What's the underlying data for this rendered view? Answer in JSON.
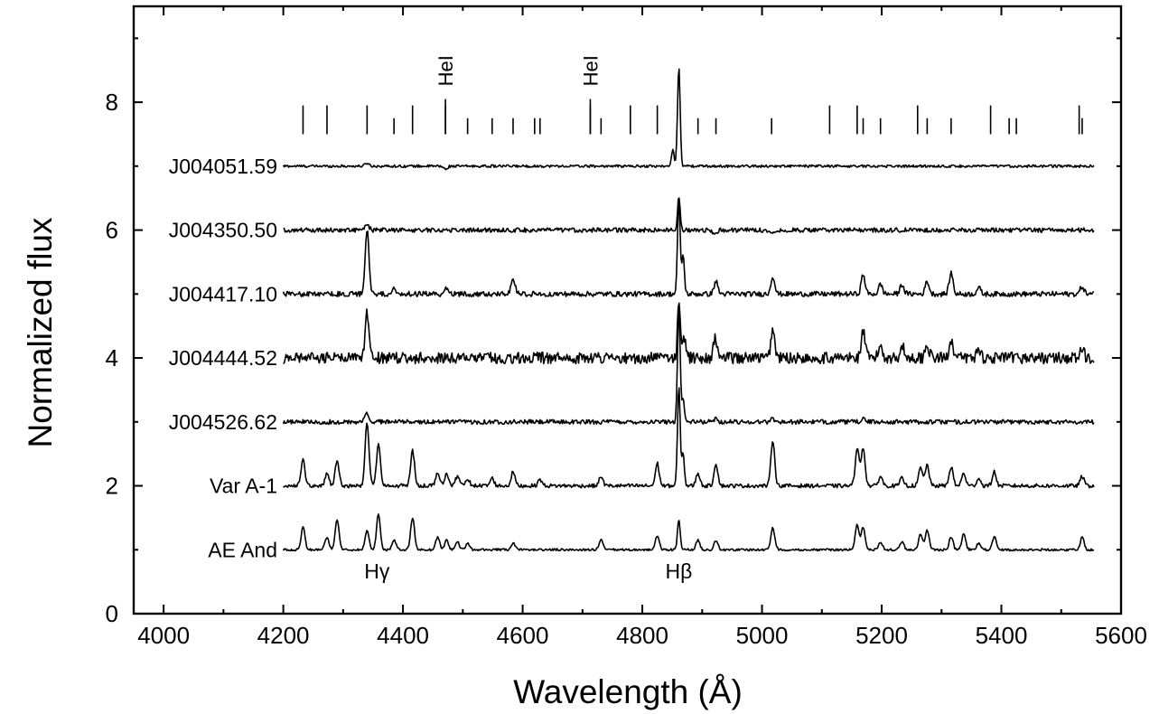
{
  "chart_data": {
    "type": "line",
    "xlabel": "Wavelength (Å)",
    "ylabel": "Normalized flux",
    "xlim": [
      3950,
      5600
    ],
    "ylim": [
      0,
      9.5
    ],
    "x_ticks": [
      "4000",
      "4200",
      "4400",
      "4600",
      "4800",
      "5000",
      "5200",
      "5400",
      "5600"
    ],
    "y_ticks": [
      "0",
      "2",
      "4",
      "6",
      "8"
    ],
    "x_range": [
      4200,
      5555
    ],
    "series": [
      {
        "name": "J004051.59",
        "offset": 7.0,
        "noise": 0.02,
        "lines": [
          [
            4340,
            0.05
          ],
          [
            4471,
            -0.05
          ],
          [
            4861,
            1.55
          ],
          [
            4851,
            0.25
          ]
        ]
      },
      {
        "name": "J004350.50",
        "offset": 6.0,
        "noise": 0.035,
        "lines": [
          [
            4340,
            0.08
          ],
          [
            4861,
            0.5
          ],
          [
            4922,
            -0.08
          ],
          [
            5016,
            -0.06
          ]
        ]
      },
      {
        "name": "J004417.10",
        "offset": 5.0,
        "noise": 0.04,
        "lines": [
          [
            4340,
            1.0
          ],
          [
            4385,
            0.1
          ],
          [
            4471,
            0.1
          ],
          [
            4584,
            0.25
          ],
          [
            4861,
            1.45
          ],
          [
            4868,
            0.6
          ],
          [
            4923,
            0.2
          ],
          [
            5018,
            0.28
          ],
          [
            5169,
            0.3
          ],
          [
            5198,
            0.15
          ],
          [
            5234,
            0.15
          ],
          [
            5276,
            0.2
          ],
          [
            5316,
            0.33
          ],
          [
            5362,
            0.1
          ],
          [
            5535,
            0.12
          ]
        ]
      },
      {
        "name": "J004444.52",
        "offset": 4.0,
        "noise": 0.09,
        "lines": [
          [
            4340,
            0.7
          ],
          [
            4861,
            0.85
          ],
          [
            4870,
            0.3
          ],
          [
            4922,
            0.3
          ],
          [
            5018,
            0.45
          ],
          [
            5169,
            0.42
          ],
          [
            5198,
            0.2
          ],
          [
            5234,
            0.2
          ],
          [
            5276,
            0.22
          ],
          [
            5316,
            0.3
          ],
          [
            5362,
            0.15
          ],
          [
            5535,
            0.12
          ]
        ]
      },
      {
        "name": "J004526.62",
        "offset": 3.0,
        "noise": 0.035,
        "lines": [
          [
            4340,
            0.15
          ],
          [
            4861,
            1.8
          ],
          [
            4868,
            0.35
          ],
          [
            4922,
            0.05
          ],
          [
            5018,
            0.05
          ],
          [
            5169,
            0.06
          ]
        ]
      },
      {
        "name": "Var A-1",
        "offset": 2.0,
        "noise": 0.03,
        "lines": [
          [
            4233,
            0.4
          ],
          [
            4273,
            0.2
          ],
          [
            4290,
            0.4
          ],
          [
            4340,
            1.0
          ],
          [
            4359,
            0.65
          ],
          [
            4416,
            0.55
          ],
          [
            4458,
            0.2
          ],
          [
            4473,
            0.2
          ],
          [
            4491,
            0.15
          ],
          [
            4508,
            0.12
          ],
          [
            4549,
            0.12
          ],
          [
            4584,
            0.22
          ],
          [
            4629,
            0.1
          ],
          [
            4731,
            0.15
          ],
          [
            4825,
            0.35
          ],
          [
            4861,
            1.55
          ],
          [
            4868,
            0.5
          ],
          [
            4893,
            0.2
          ],
          [
            4923,
            0.35
          ],
          [
            5018,
            0.72
          ],
          [
            5159,
            0.6
          ],
          [
            5169,
            0.6
          ],
          [
            5198,
            0.15
          ],
          [
            5234,
            0.12
          ],
          [
            5265,
            0.28
          ],
          [
            5276,
            0.33
          ],
          [
            5316,
            0.3
          ],
          [
            5337,
            0.2
          ],
          [
            5362,
            0.12
          ],
          [
            5388,
            0.22
          ],
          [
            5535,
            0.15
          ]
        ]
      },
      {
        "name": "AE And",
        "offset": 1.0,
        "noise": 0.018,
        "lines": [
          [
            4233,
            0.35
          ],
          [
            4273,
            0.2
          ],
          [
            4290,
            0.48
          ],
          [
            4340,
            0.3
          ],
          [
            4359,
            0.55
          ],
          [
            4385,
            0.15
          ],
          [
            4416,
            0.5
          ],
          [
            4458,
            0.2
          ],
          [
            4473,
            0.15
          ],
          [
            4491,
            0.12
          ],
          [
            4508,
            0.1
          ],
          [
            4584,
            0.1
          ],
          [
            4731,
            0.15
          ],
          [
            4825,
            0.22
          ],
          [
            4861,
            0.48
          ],
          [
            4893,
            0.15
          ],
          [
            4923,
            0.15
          ],
          [
            5018,
            0.35
          ],
          [
            5159,
            0.4
          ],
          [
            5169,
            0.35
          ],
          [
            5198,
            0.12
          ],
          [
            5234,
            0.12
          ],
          [
            5265,
            0.25
          ],
          [
            5276,
            0.3
          ],
          [
            5316,
            0.2
          ],
          [
            5337,
            0.25
          ],
          [
            5362,
            0.1
          ],
          [
            5388,
            0.2
          ],
          [
            5535,
            0.2
          ]
        ]
      }
    ],
    "marker_lines": [
      4233,
      4273,
      4340,
      4385,
      4416,
      4471,
      4508,
      4549,
      4584,
      4620,
      4629,
      4713,
      4731,
      4780,
      4825,
      4893,
      4923,
      5016,
      5113,
      5159,
      5169,
      5198,
      5260,
      5276,
      5316,
      5382,
      5413,
      5425,
      5530,
      5535
    ],
    "annotations": {
      "he_lines": [
        {
          "label": "HeI",
          "x": 4471
        },
        {
          "label": "HeI",
          "x": 4713
        }
      ],
      "hgamma": {
        "label": "Hγ",
        "x": 4340
      },
      "hbeta": {
        "label": "Hβ",
        "x": 4861
      }
    }
  }
}
